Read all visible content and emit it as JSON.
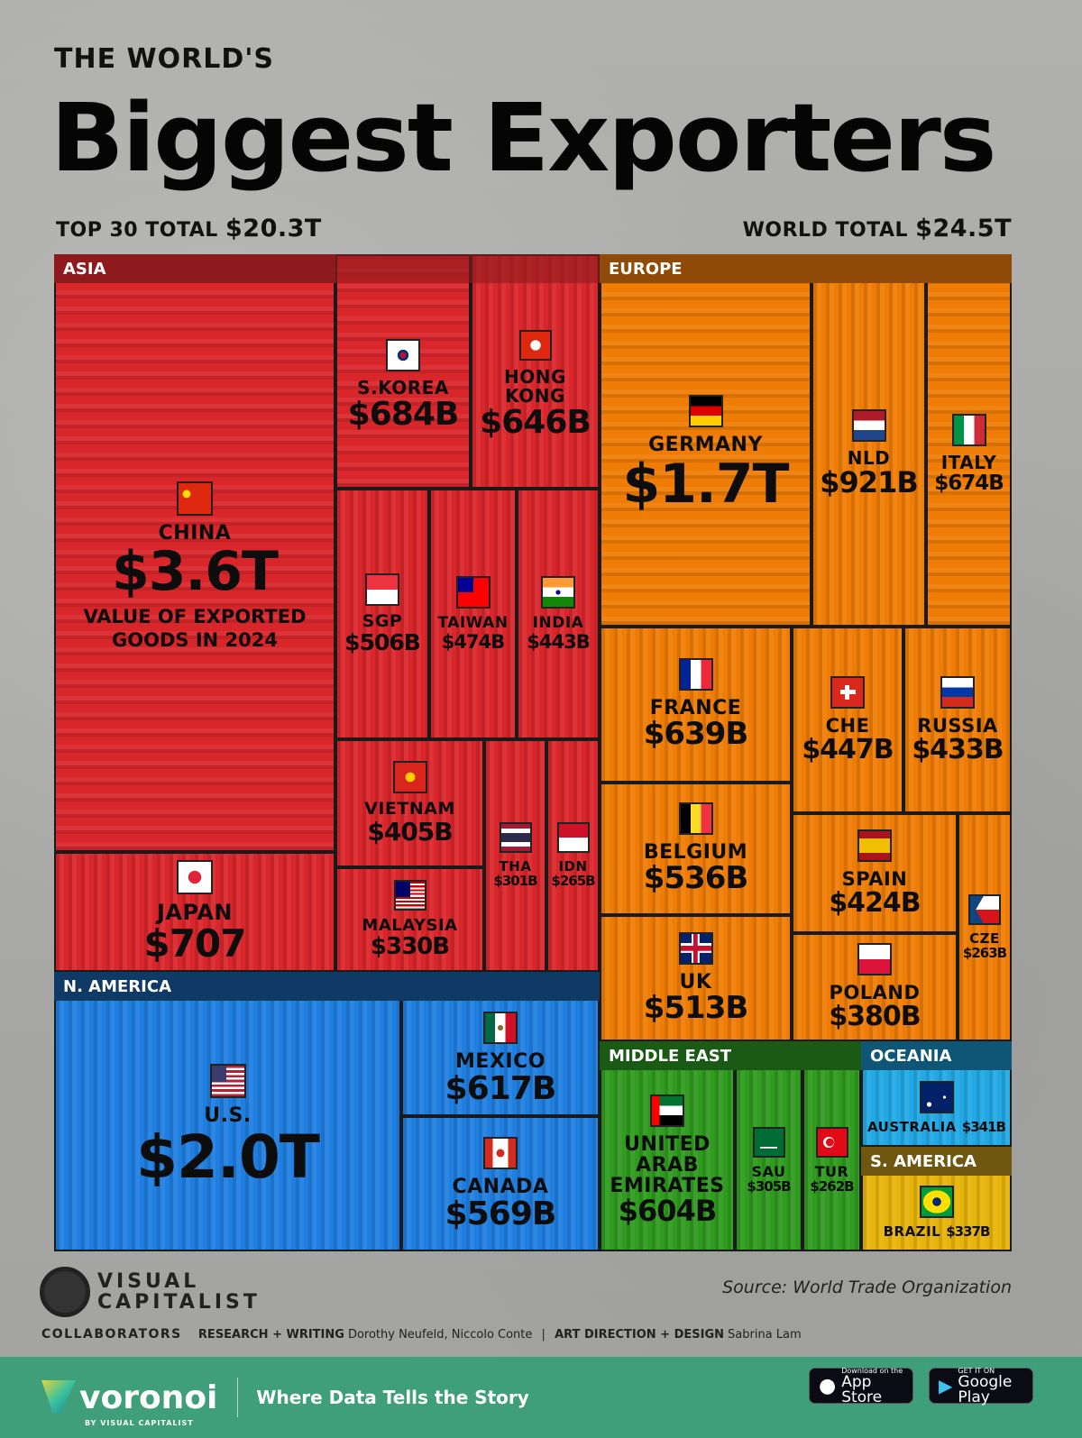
{
  "header": {
    "supertitle": "THE WORLD'S",
    "title": "Biggest Exporters",
    "top30_label": "TOP 30 TOTAL",
    "top30_value": "$20.3T",
    "world_label": "WORLD TOTAL",
    "world_value": "$24.5T"
  },
  "chart_data": {
    "type": "treemap",
    "title": "Biggest Exporters",
    "subtitle": "VALUE OF EXPORTED GOODS IN 2024",
    "regions": [
      {
        "name": "ASIA",
        "color": "#d9262b",
        "header_color": "#8e1a1e"
      },
      {
        "name": "EUROPE",
        "color": "#ef7d05",
        "header_color": "#8f4a07"
      },
      {
        "name": "N. AMERICA",
        "color": "#1f7fe0",
        "header_color": "#0f3a66"
      },
      {
        "name": "MIDDLE EAST",
        "color": "#2f9b1f",
        "header_color": "#1b5a14"
      },
      {
        "name": "OCEANIA",
        "color": "#22a9e5",
        "header_color": "#0f5575"
      },
      {
        "name": "S. AMERICA",
        "color": "#e6b40a",
        "header_color": "#6f5710"
      }
    ],
    "items": [
      {
        "name": "CHINA",
        "value": "$3.6T",
        "value_bn": 3600,
        "region": "ASIA",
        "flag": "china-flag-icon",
        "note": "VALUE OF EXPORTED GOODS IN 2024"
      },
      {
        "name": "JAPAN",
        "value": "$707",
        "value_bn": 707,
        "region": "ASIA",
        "flag": "japan-flag-icon"
      },
      {
        "name": "S.KOREA",
        "value": "$684B",
        "value_bn": 684,
        "region": "ASIA",
        "flag": "south-korea-flag-icon"
      },
      {
        "name": "HONG KONG",
        "value": "$646B",
        "value_bn": 646,
        "region": "ASIA",
        "flag": "hong-kong-flag-icon"
      },
      {
        "name": "SGP",
        "value": "$506B",
        "value_bn": 506,
        "region": "ASIA",
        "flag": "singapore-flag-icon"
      },
      {
        "name": "TAIWAN",
        "value": "$474B",
        "value_bn": 474,
        "region": "ASIA",
        "flag": "taiwan-flag-icon"
      },
      {
        "name": "INDIA",
        "value": "$443B",
        "value_bn": 443,
        "region": "ASIA",
        "flag": "india-flag-icon"
      },
      {
        "name": "VIETNAM",
        "value": "$405B",
        "value_bn": 405,
        "region": "ASIA",
        "flag": "vietnam-flag-icon"
      },
      {
        "name": "MALAYSIA",
        "value": "$330B",
        "value_bn": 330,
        "region": "ASIA",
        "flag": "malaysia-flag-icon"
      },
      {
        "name": "THA",
        "value": "$301B",
        "value_bn": 301,
        "region": "ASIA",
        "flag": "thailand-flag-icon"
      },
      {
        "name": "IDN",
        "value": "$265B",
        "value_bn": 265,
        "region": "ASIA",
        "flag": "indonesia-flag-icon"
      },
      {
        "name": "U.S.",
        "value": "$2.0T",
        "value_bn": 2000,
        "region": "N. AMERICA",
        "flag": "usa-flag-icon"
      },
      {
        "name": "MEXICO",
        "value": "$617B",
        "value_bn": 617,
        "region": "N. AMERICA",
        "flag": "mexico-flag-icon"
      },
      {
        "name": "CANADA",
        "value": "$569B",
        "value_bn": 569,
        "region": "N. AMERICA",
        "flag": "canada-flag-icon"
      },
      {
        "name": "GERMANY",
        "value": "$1.7T",
        "value_bn": 1700,
        "region": "EUROPE",
        "flag": "germany-flag-icon"
      },
      {
        "name": "NLD",
        "value": "$921B",
        "value_bn": 921,
        "region": "EUROPE",
        "flag": "netherlands-flag-icon"
      },
      {
        "name": "ITALY",
        "value": "$674B",
        "value_bn": 674,
        "region": "EUROPE",
        "flag": "italy-flag-icon"
      },
      {
        "name": "FRANCE",
        "value": "$639B",
        "value_bn": 639,
        "region": "EUROPE",
        "flag": "france-flag-icon"
      },
      {
        "name": "CHE",
        "value": "$447B",
        "value_bn": 447,
        "region": "EUROPE",
        "flag": "switzerland-flag-icon"
      },
      {
        "name": "RUSSIA",
        "value": "$433B",
        "value_bn": 433,
        "region": "EUROPE",
        "flag": "russia-flag-icon"
      },
      {
        "name": "BELGIUM",
        "value": "$536B",
        "value_bn": 536,
        "region": "EUROPE",
        "flag": "belgium-flag-icon"
      },
      {
        "name": "UK",
        "value": "$513B",
        "value_bn": 513,
        "region": "EUROPE",
        "flag": "uk-flag-icon"
      },
      {
        "name": "SPAIN",
        "value": "$424B",
        "value_bn": 424,
        "region": "EUROPE",
        "flag": "spain-flag-icon"
      },
      {
        "name": "POLAND",
        "value": "$380B",
        "value_bn": 380,
        "region": "EUROPE",
        "flag": "poland-flag-icon"
      },
      {
        "name": "CZE",
        "value": "$263B",
        "value_bn": 263,
        "region": "EUROPE",
        "flag": "czechia-flag-icon"
      },
      {
        "name": "UNITED ARAB EMIRATES",
        "value": "$604B",
        "value_bn": 604,
        "region": "MIDDLE EAST",
        "flag": "uae-flag-icon"
      },
      {
        "name": "SAU",
        "value": "$305B",
        "value_bn": 305,
        "region": "MIDDLE EAST",
        "flag": "saudi-arabia-flag-icon"
      },
      {
        "name": "TUR",
        "value": "$262B",
        "value_bn": 262,
        "region": "MIDDLE EAST",
        "flag": "turkey-flag-icon"
      },
      {
        "name": "AUSTRALIA",
        "value": "$341B",
        "value_bn": 341,
        "region": "OCEANIA",
        "flag": "australia-flag-icon"
      },
      {
        "name": "BRAZIL",
        "value": "$337B",
        "value_bn": 337,
        "region": "S. AMERICA",
        "flag": "brazil-flag-icon"
      }
    ]
  },
  "footer": {
    "brand": "VISUAL CAPITALIST",
    "brand_line1": "VISUAL",
    "brand_line2": "CAPITALIST",
    "source": "Source: World Trade Organization",
    "collaborators_label": "COLLABORATORS",
    "research_label": "RESEARCH + WRITING",
    "research_names": "Dorothy Neufeld, Niccolo Conte",
    "divider": "|",
    "design_label": "ART DIRECTION + DESIGN",
    "design_names": "Sabrina Lam",
    "voronoi": "voronoi",
    "voronoi_by": "BY VISUAL CAPITALIST",
    "tagline": "Where Data Tells the Story",
    "app_store_small": "Download on the",
    "app_store": "App Store",
    "google_small": "GET IT ON",
    "google": "Google Play"
  }
}
